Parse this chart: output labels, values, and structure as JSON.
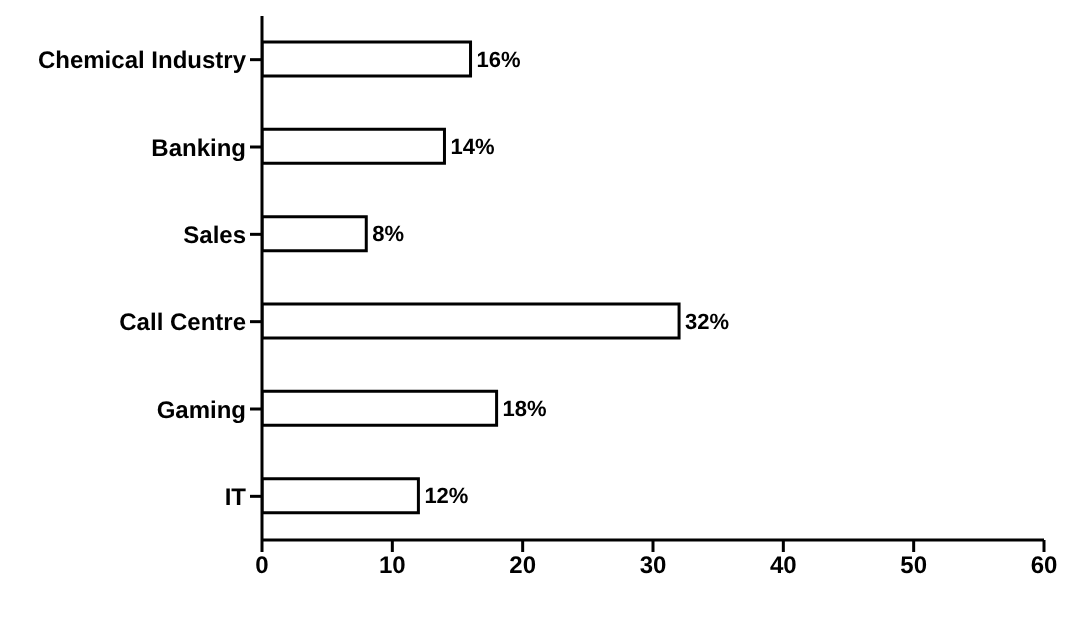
{
  "chart_data": {
    "type": "bar",
    "orientation": "horizontal",
    "categories": [
      "Chemical Industry",
      "Banking",
      "Sales",
      "Call Centre",
      "Gaming",
      "IT"
    ],
    "values": [
      16,
      14,
      8,
      32,
      18,
      12
    ],
    "value_labels": [
      "16%",
      "14%",
      "8%",
      "32%",
      "18%",
      "12%"
    ],
    "color": "#ffffff",
    "xlim": [
      0,
      60
    ],
    "xticks": [
      0,
      10,
      20,
      30,
      40,
      50,
      60
    ],
    "grid": false
  }
}
